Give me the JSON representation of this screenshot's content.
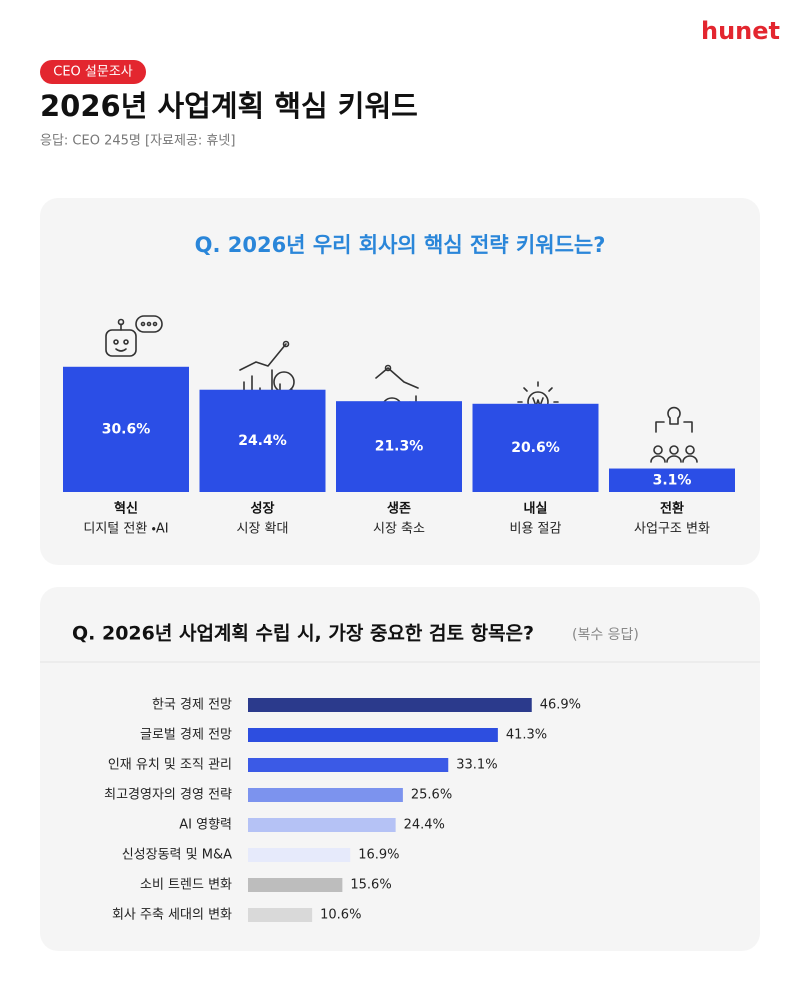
{
  "header": {
    "logo": "hunet",
    "badge": "CEO 설문조사",
    "title": "2026년 사업계획 핵심 키워드",
    "subtitle": "응답: CEO 245명 [자료제공: 휴넷]"
  },
  "chart_data": [
    {
      "type": "bar",
      "title": "Q. 2026년 우리 회사의 핵심 전략 키워드는?",
      "categories": [
        "혁신",
        "성장",
        "생존",
        "내실",
        "전환"
      ],
      "category_details": [
        "디지털 전환 ・AI",
        "시장 확대",
        "시장 축소",
        "비용 절감",
        "사업구조 변화"
      ],
      "values": [
        30.6,
        24.4,
        21.3,
        20.6,
        3.1
      ],
      "value_labels": [
        "30.6%",
        "24.4%",
        "21.3%",
        "20.6%",
        "3.1%"
      ],
      "color": "#2b4ee6"
    },
    {
      "type": "hbar",
      "title": "Q. 2026년 사업계획 수립 시, 가장 중요한 검토 항목은?",
      "note": "(복수 응답)",
      "categories": [
        "한국 경제 전망",
        "글로벌 경제 전망",
        "인재 유치 및 조직 관리",
        "최고경영자의 경영 전략",
        "AI 영향력",
        "신성장동력 및 M&A",
        "소비 트렌드 변화",
        "회사 주축 세대의 변화"
      ],
      "values": [
        46.9,
        41.3,
        33.1,
        25.6,
        24.4,
        16.9,
        15.6,
        10.6
      ],
      "value_labels": [
        "46.9%",
        "41.3%",
        "33.1%",
        "25.6%",
        "24.4%",
        "16.9%",
        "15.6%",
        "10.6%"
      ],
      "colors": [
        "#2b3a8c",
        "#2d4ee0",
        "#3b5ae6",
        "#7c93ee",
        "#b5c2f5",
        "#e6eafb",
        "#bdbdbd",
        "#d9d9d9"
      ]
    }
  ]
}
